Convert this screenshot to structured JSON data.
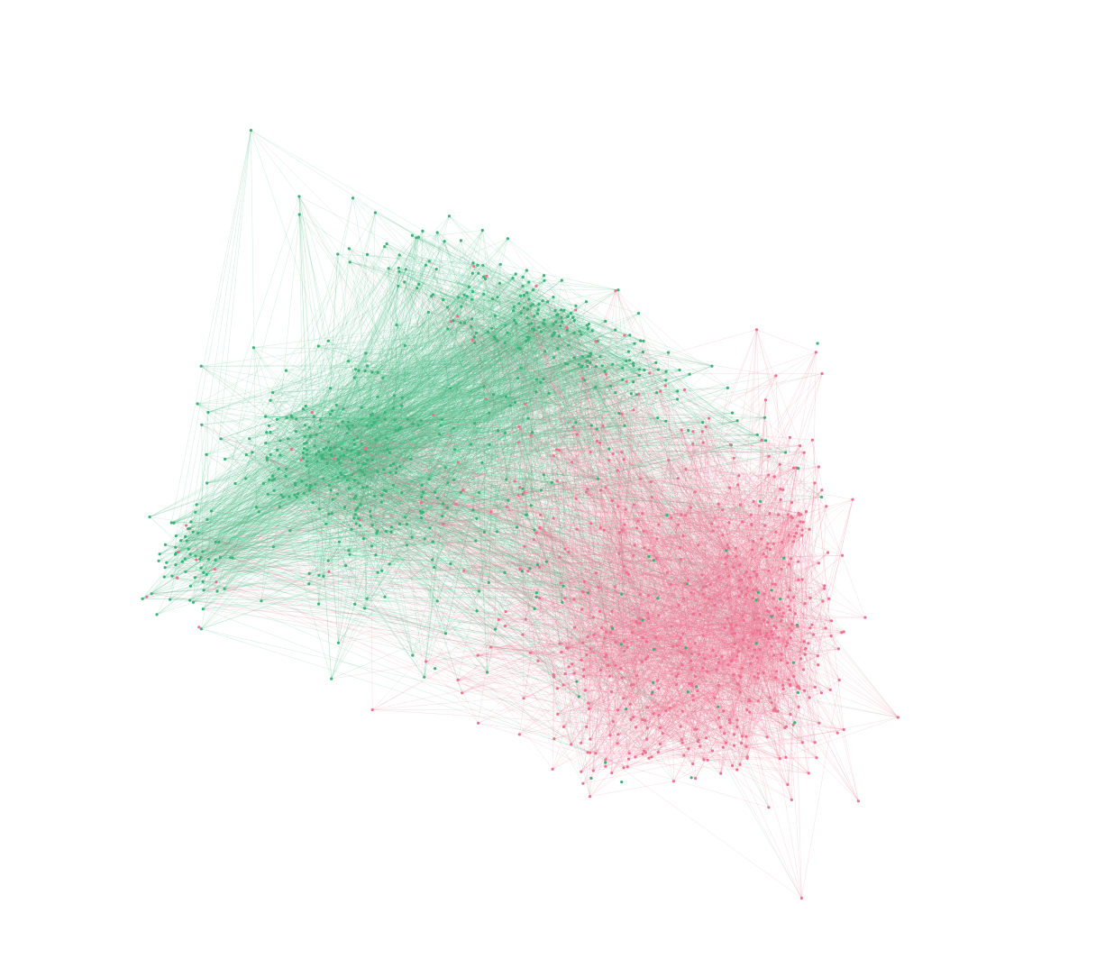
{
  "graph": {
    "groups": [
      {
        "color": "#3cb37a"
      },
      {
        "color": "#ee7391"
      }
    ]
  }
}
